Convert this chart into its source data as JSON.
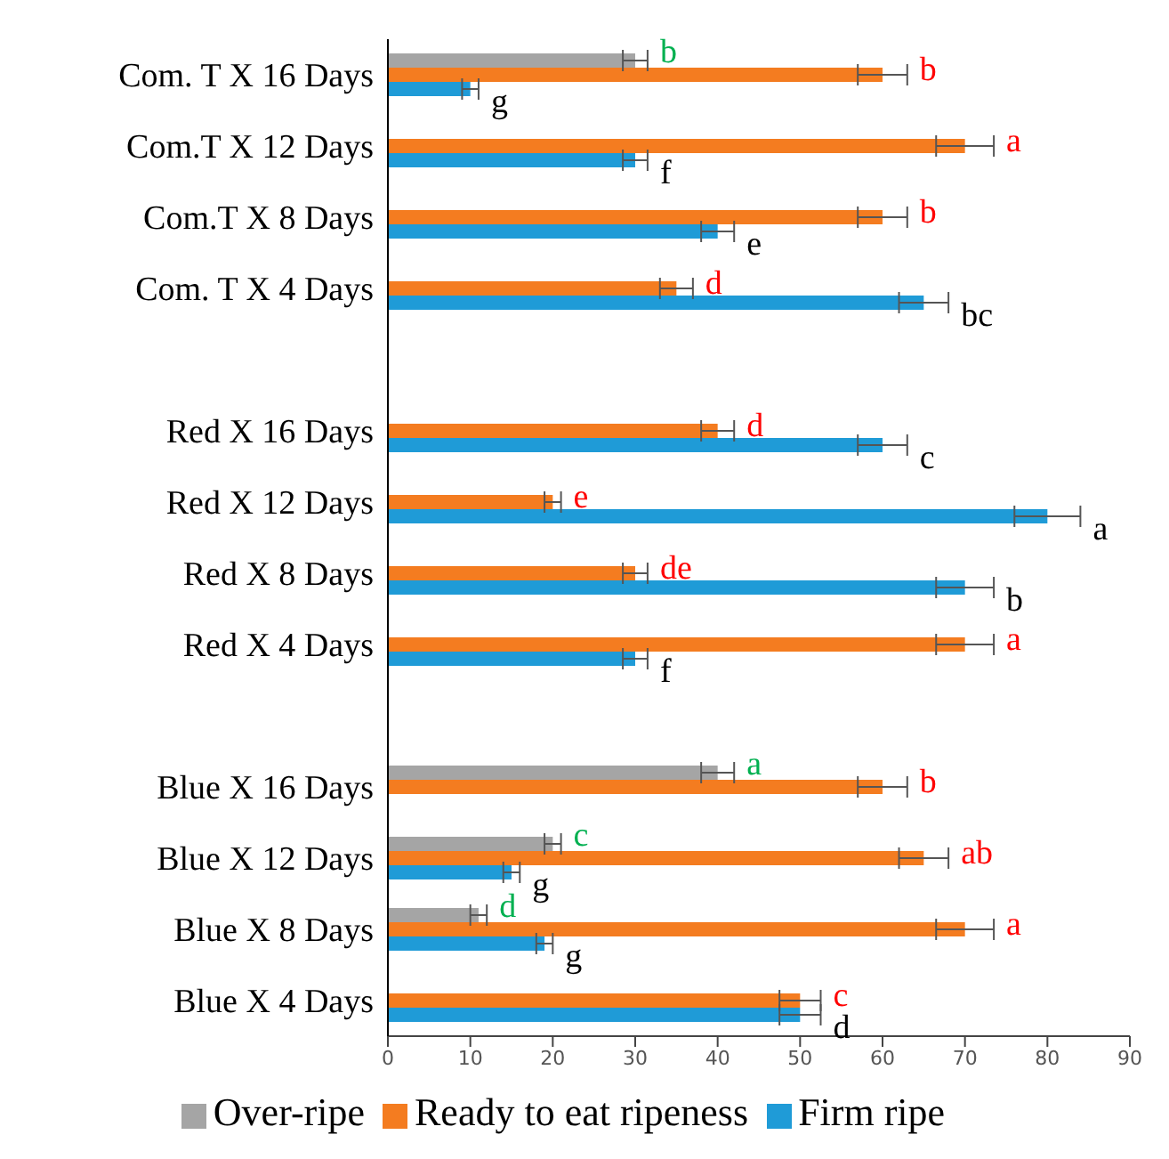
{
  "chart_data": {
    "type": "bar",
    "orientation": "horizontal",
    "categories": [
      "Com. T X 16 Days",
      "Com.T X 12 Days",
      "Com.T X 8 Days",
      "Com. T X 4 Days",
      null,
      "Red X 16 Days",
      "Red X 12 Days",
      "Red X 8 Days",
      "Red X 4 Days",
      null,
      "Blue X 16 Days",
      "Blue X 12 Days",
      "Blue X 8 Days",
      "Blue X 4 Days"
    ],
    "series": [
      {
        "name": "Over-ripe",
        "color": "#a5a5a5",
        "values": [
          30,
          null,
          null,
          null,
          null,
          null,
          null,
          null,
          null,
          null,
          40,
          20,
          11,
          null
        ],
        "errors": [
          1.5,
          null,
          null,
          null,
          null,
          null,
          null,
          null,
          null,
          null,
          2,
          1,
          1,
          null
        ],
        "value_labels": [
          "b",
          null,
          null,
          null,
          null,
          null,
          null,
          null,
          null,
          null,
          "a",
          "c",
          "d",
          null
        ]
      },
      {
        "name": "Ready to eat ripeness",
        "color": "#f47c20",
        "values": [
          60,
          70,
          60,
          35,
          null,
          40,
          20,
          30,
          70,
          null,
          60,
          65,
          70,
          50
        ],
        "errors": [
          3,
          3.5,
          3,
          2,
          null,
          2,
          1,
          1.5,
          3.5,
          null,
          3,
          3,
          3.5,
          2.5
        ],
        "value_labels": [
          "b",
          "a",
          "b",
          "d",
          null,
          "d",
          "e",
          "de",
          "a",
          null,
          "b",
          "ab",
          "a",
          "c"
        ]
      },
      {
        "name": "Firm ripe",
        "color": "#1f9bd7",
        "values": [
          10,
          30,
          40,
          65,
          null,
          60,
          80,
          70,
          30,
          null,
          null,
          15,
          19,
          50
        ],
        "errors": [
          1,
          1.5,
          2,
          3,
          null,
          3,
          4,
          3.5,
          1.5,
          null,
          null,
          1,
          1,
          2.5
        ],
        "value_labels": [
          "g",
          "f",
          "e",
          "bc",
          null,
          "c",
          "a",
          "b",
          "f",
          null,
          null,
          "g",
          "g",
          "d"
        ]
      }
    ],
    "xlim": [
      0,
      90
    ],
    "xticks": [
      0,
      10,
      20,
      30,
      40,
      50,
      60,
      70,
      80,
      90
    ],
    "grid": false,
    "legend": "bottom"
  }
}
